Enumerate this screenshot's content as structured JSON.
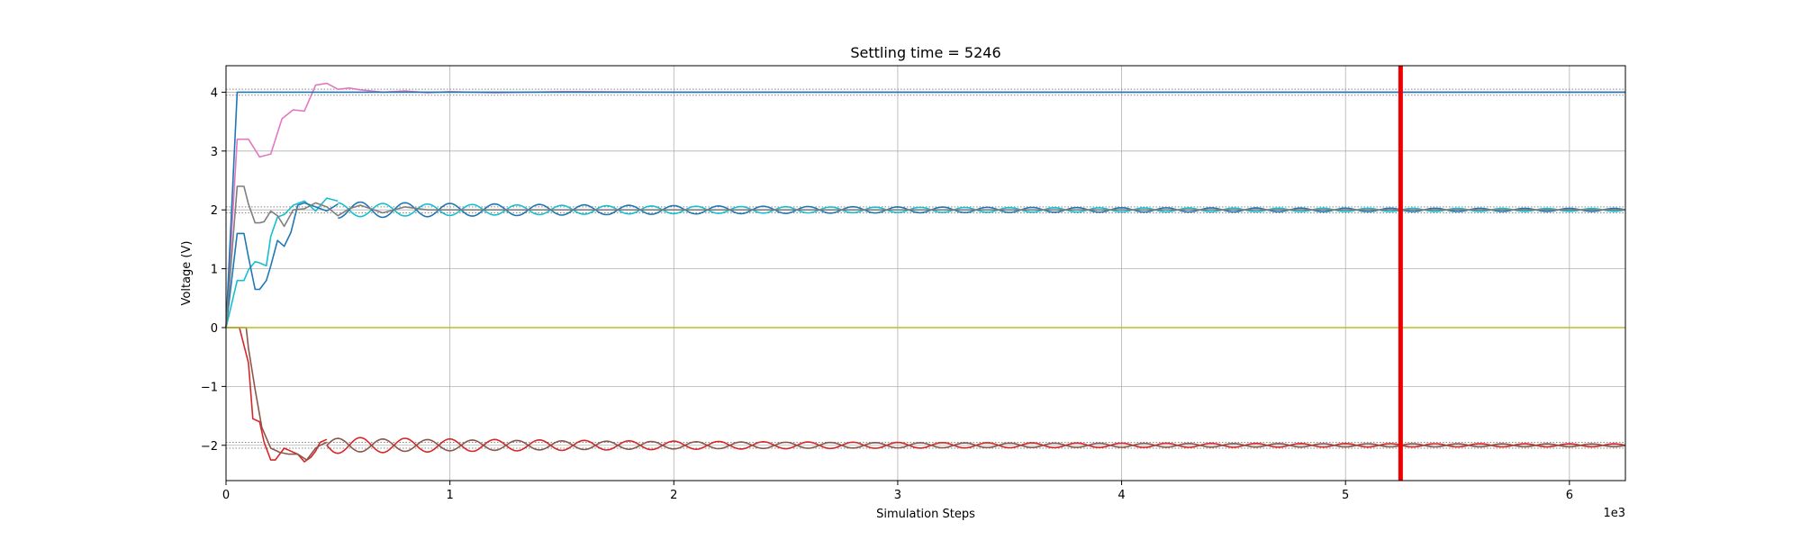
{
  "chart_data": {
    "type": "line",
    "title": "Settling time = 5246",
    "xlabel": "Simulation Steps",
    "ylabel": "Voltage (V)",
    "x_multiplier_label": "1e3",
    "xlim": [
      0,
      6250
    ],
    "ylim": [
      -2.6,
      4.45
    ],
    "xticks": [
      0,
      1000,
      2000,
      3000,
      4000,
      5000,
      6000
    ],
    "xtick_labels": [
      "0",
      "1",
      "2",
      "3",
      "4",
      "5",
      "6"
    ],
    "yticks": [
      -2,
      -1,
      0,
      1,
      2,
      3,
      4
    ],
    "ytick_labels": [
      "−2",
      "−1",
      "0",
      "1",
      "2",
      "3",
      "4"
    ],
    "grid": true,
    "settling_marker": {
      "x": 5246,
      "color": "#ee0000"
    },
    "reference_lines": [
      {
        "y": 4.05,
        "style": "dotted",
        "color": "#888888"
      },
      {
        "y": 3.95,
        "style": "dotted",
        "color": "#888888"
      },
      {
        "y": 2.05,
        "style": "dotted",
        "color": "#888888"
      },
      {
        "y": 1.95,
        "style": "dotted",
        "color": "#888888"
      },
      {
        "y": -1.95,
        "style": "dotted",
        "color": "#888888"
      },
      {
        "y": -2.05,
        "style": "dotted",
        "color": "#888888"
      }
    ],
    "series": [
      {
        "color": "#e377c2",
        "x": [
          0,
          50,
          100,
          150,
          200,
          250,
          300,
          350,
          400,
          450,
          500,
          550,
          600,
          700,
          800,
          900,
          1000,
          1200,
          1500,
          2000,
          3000,
          4000,
          5000,
          6250
        ],
        "y": [
          0,
          3.2,
          3.2,
          2.9,
          2.95,
          3.55,
          3.7,
          3.68,
          4.12,
          4.15,
          4.05,
          4.07,
          4.04,
          4.0,
          4.02,
          3.99,
          4.01,
          3.99,
          4.01,
          4.0,
          4.0,
          4.0,
          4.0,
          4.0
        ]
      },
      {
        "color": "#1f77b4",
        "x": [
          0,
          50,
          6250
        ],
        "y": [
          0,
          4.0,
          4.0
        ]
      },
      {
        "color": "#7f7f7f",
        "x": [
          0,
          50,
          80,
          100,
          130,
          150,
          170,
          200,
          230,
          260,
          300,
          350,
          400,
          450,
          500,
          550,
          600,
          700,
          800,
          900,
          1000,
          6250
        ],
        "y": [
          0,
          2.4,
          2.4,
          2.1,
          1.78,
          1.78,
          1.8,
          1.98,
          1.9,
          1.72,
          2.0,
          2.02,
          2.12,
          2.05,
          1.9,
          2.02,
          2.08,
          1.95,
          2.05,
          2.0,
          2.0,
          2.0
        ]
      },
      {
        "color": "#bcbd22",
        "x": [
          0,
          6250
        ],
        "y": [
          0,
          0
        ]
      }
    ],
    "oscillating_series": [
      {
        "color": "#17becf",
        "base": 2.0,
        "amplitude": 0.1,
        "period": 200,
        "phase": 100,
        "decay": 1800,
        "start": 500,
        "end": 6250
      },
      {
        "color": "#1f77b4",
        "base": 2.0,
        "amplitude": 0.12,
        "period": 200,
        "phase": 0,
        "decay": 1800,
        "start": 500,
        "end": 6250
      },
      {
        "color": "#d62728",
        "base": -2.0,
        "amplitude": 0.12,
        "period": 200,
        "phase": 0,
        "decay": 1800,
        "start": 450,
        "end": 6250
      },
      {
        "color": "#8c564b",
        "base": -2.0,
        "amplitude": 0.1,
        "period": 200,
        "phase": 100,
        "decay": 1800,
        "start": 450,
        "end": 6250
      }
    ],
    "transient_series": [
      {
        "color": "#17becf",
        "x": [
          0,
          50,
          80,
          100,
          130,
          150,
          180,
          200,
          230,
          260,
          300,
          350,
          400,
          450,
          500
        ],
        "y": [
          0,
          0.8,
          0.8,
          0.98,
          1.12,
          1.1,
          1.05,
          1.55,
          1.88,
          1.92,
          2.08,
          2.15,
          1.98,
          2.2,
          2.15
        ]
      },
      {
        "color": "#1f77b4",
        "x": [
          0,
          50,
          80,
          100,
          130,
          150,
          180,
          200,
          230,
          260,
          290,
          320,
          350,
          400,
          450,
          500
        ],
        "y": [
          0,
          1.6,
          1.6,
          1.2,
          0.65,
          0.65,
          0.8,
          1.05,
          1.48,
          1.38,
          1.62,
          2.08,
          2.12,
          2.05,
          1.98,
          2.1
        ]
      },
      {
        "color": "#d62728",
        "x": [
          0,
          60,
          100,
          120,
          150,
          170,
          200,
          220,
          260,
          290,
          320,
          350,
          380,
          400,
          420,
          450
        ],
        "y": [
          0,
          0,
          -0.6,
          -1.55,
          -1.6,
          -1.95,
          -2.25,
          -2.25,
          -2.05,
          -2.1,
          -2.15,
          -2.28,
          -2.2,
          -2.1,
          -1.95,
          -1.9
        ]
      },
      {
        "color": "#8c564b",
        "x": [
          0,
          90,
          100,
          130,
          160,
          200,
          240,
          280,
          320,
          360,
          400,
          420,
          450
        ],
        "y": [
          0,
          0,
          -0.35,
          -1.05,
          -1.7,
          -2.05,
          -2.12,
          -2.15,
          -2.15,
          -2.25,
          -2.05,
          -2.0,
          -1.95
        ]
      }
    ]
  }
}
